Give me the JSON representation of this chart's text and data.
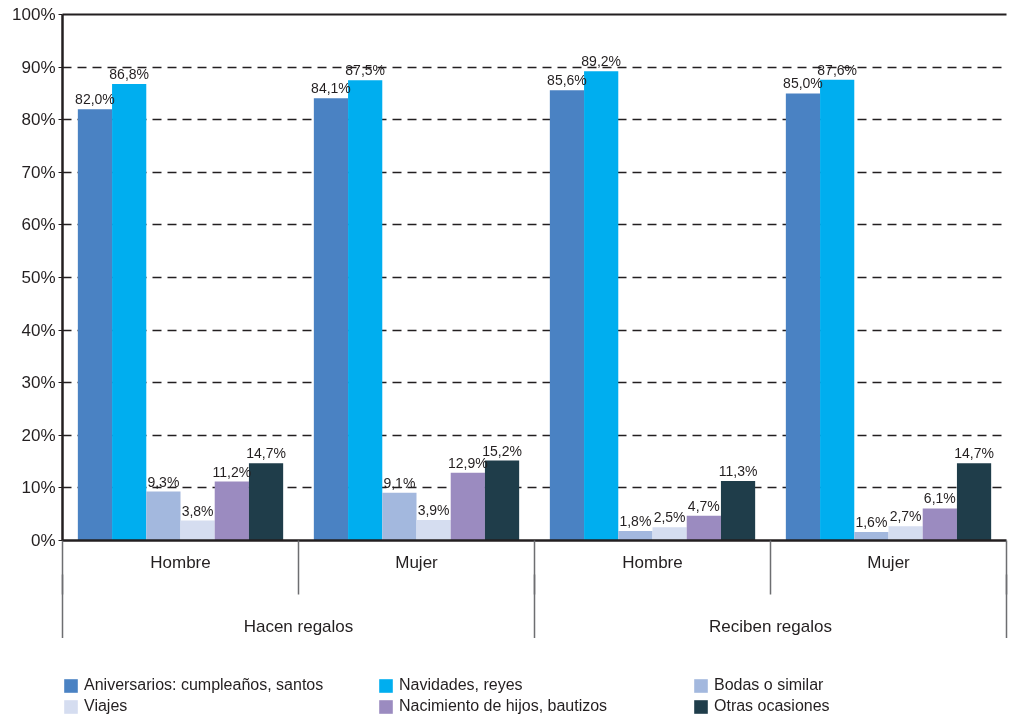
{
  "chart_data": {
    "type": "bar",
    "categories": [
      "Hombre",
      "Mujer",
      "Hombre",
      "Mujer"
    ],
    "series": [
      {
        "name": "Aniversarios: cumpleaños, santos",
        "color": "#4a82c3",
        "values": [
          82.0,
          84.1,
          85.6,
          85.0
        ],
        "value_labels": [
          "82,0%",
          "84,1%",
          "85,6%",
          "85,0%"
        ]
      },
      {
        "name": "Navidades, reyes",
        "color": "#00aeef",
        "values": [
          86.8,
          87.5,
          89.2,
          87.6
        ],
        "value_labels": [
          "86,8%",
          "87,5%",
          "89,2%",
          "87,6%"
        ]
      },
      {
        "name": "Bodas o similar",
        "color": "#a3b8de",
        "values": [
          9.3,
          9.1,
          1.8,
          1.6
        ],
        "value_labels": [
          "9,3%",
          "9,1%",
          "1,8%",
          "1,6%"
        ]
      },
      {
        "name": "Viajes",
        "color": "#d5ddf0",
        "values": [
          3.8,
          3.9,
          2.5,
          2.7
        ],
        "value_labels": [
          "3,8%",
          "3,9%",
          "2,5%",
          "2,7%"
        ]
      },
      {
        "name": "Nacimiento de hijos, bautizos",
        "color": "#9b8bc0",
        "values": [
          11.2,
          12.9,
          4.7,
          6.1
        ],
        "value_labels": [
          "11,2%",
          "12,9%",
          "4,7%",
          "6,1%"
        ]
      },
      {
        "name": "Otras ocasiones",
        "color": "#1f3d4a",
        "values": [
          14.7,
          15.2,
          11.3,
          14.7
        ],
        "value_labels": [
          "14,7%",
          "15,2%",
          "11,3%",
          "14,7%"
        ]
      }
    ],
    "ylim": [
      0,
      100
    ],
    "yticks": [
      {
        "value": 0,
        "label": "0%"
      },
      {
        "value": 10,
        "label": "10%"
      },
      {
        "value": 20,
        "label": "20%"
      },
      {
        "value": 30,
        "label": "30%"
      },
      {
        "value": 40,
        "label": "40%"
      },
      {
        "value": 50,
        "label": "50%"
      },
      {
        "value": 60,
        "label": "60%"
      },
      {
        "value": 70,
        "label": "70%"
      },
      {
        "value": 80,
        "label": "80%"
      },
      {
        "value": 90,
        "label": "90%"
      },
      {
        "value": 100,
        "label": "100%"
      }
    ],
    "grid": "y",
    "legend": "bottom",
    "annotations": [
      "Hacen regalos",
      "Reciben regalos"
    ]
  }
}
